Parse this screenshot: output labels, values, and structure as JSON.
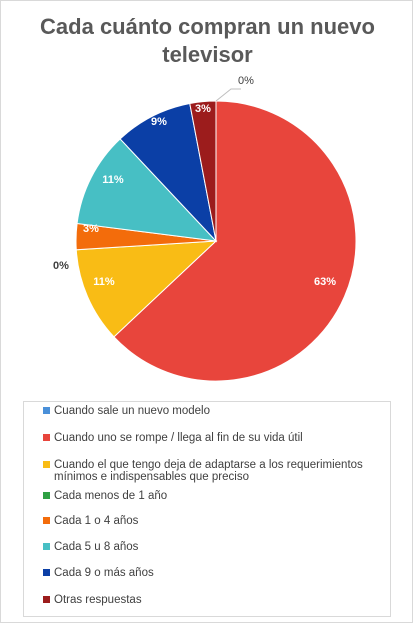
{
  "chart_data": {
    "type": "pie",
    "title": "Cada cuánto compran un nuevo televisor",
    "slices": [
      {
        "label": "Cuando sale un nuevo modelo",
        "value": 0,
        "value_label": "",
        "color": "#4a90d9"
      },
      {
        "label": "Cuando uno se rompe / llega al fin de su vida útil",
        "value": 63,
        "value_label": "63%",
        "color": "#e8453c"
      },
      {
        "label": "Cuando el que tengo deja de adaptarse a los requerimientos mínimos e indispensables que preciso",
        "value": 11,
        "value_label": "11%",
        "color": "#f9bc15"
      },
      {
        "label": "Cada menos de 1 año",
        "value": 0,
        "value_label": "0%",
        "color": "#2ea043"
      },
      {
        "label": "Cada 1 o 4 años",
        "value": 3,
        "value_label": "3%",
        "color": "#f36c0b"
      },
      {
        "label": "Cada 5 u 8 años",
        "value": 11,
        "value_label": "11%",
        "color": "#47bfc4"
      },
      {
        "label": "Cada 9 o más años",
        "value": 9,
        "value_label": "9%",
        "color": "#0b3fa6"
      },
      {
        "label": "Otras respuestas",
        "value": 3,
        "value_label": "3%",
        "color": "#9c1c1c"
      }
    ],
    "extra_labels": [
      "0%"
    ],
    "legend_position": "bottom"
  }
}
